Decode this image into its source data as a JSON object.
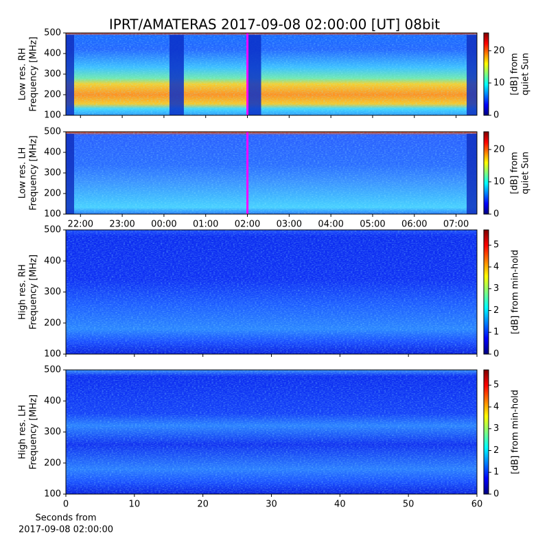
{
  "chart_data": [
    {
      "type": "spectrogram",
      "title": "IPRT/AMATERAS 2017-09-08 02:00:00 [UT]   08bit",
      "ylabel": [
        "Low res. RH",
        "Frequency [MHz]"
      ],
      "xlim": [
        21.65,
        31.5
      ],
      "xticks": [
        22,
        23,
        24,
        25,
        26,
        27,
        28,
        29,
        30,
        31
      ],
      "xticklabels": false,
      "ylim": [
        100,
        500
      ],
      "yticks": [
        100,
        200,
        300,
        400,
        500
      ],
      "colormap": "jet",
      "clim": [
        0,
        25.5
      ],
      "cticks": [
        0,
        10,
        20
      ],
      "clabel": [
        "[dB] from",
        "quiet Sun"
      ],
      "vline": {
        "value": 26,
        "color": "#ff00ff"
      }
    },
    {
      "type": "spectrogram",
      "ylabel": [
        "Low res. LH",
        "Frequency [MHz]"
      ],
      "xlim": [
        21.65,
        31.5
      ],
      "xticks": [
        {
          "value": 22,
          "label": "22:00"
        },
        {
          "value": 23,
          "label": "23:00"
        },
        {
          "value": 24,
          "label": "00:00"
        },
        {
          "value": 25,
          "label": "01:00"
        },
        {
          "value": 26,
          "label": "02:00"
        },
        {
          "value": 27,
          "label": "03:00"
        },
        {
          "value": 28,
          "label": "04:00"
        },
        {
          "value": 29,
          "label": "05:00"
        },
        {
          "value": 30,
          "label": "06:00"
        },
        {
          "value": 31,
          "label": "07:00"
        }
      ],
      "ylim": [
        100,
        500
      ],
      "yticks": [
        100,
        200,
        300,
        400,
        500
      ],
      "colormap": "jet",
      "clim": [
        0,
        25.5
      ],
      "cticks": [
        0,
        10,
        20
      ],
      "clabel": [
        "[dB] from",
        "quiet Sun"
      ],
      "vline": {
        "value": 26,
        "color": "#ff00ff"
      }
    },
    {
      "type": "spectrogram",
      "ylabel": [
        "High res. RH",
        "Frequency [MHz]"
      ],
      "xlim": [
        0,
        60
      ],
      "xticks": [
        0,
        10,
        20,
        30,
        40,
        50,
        60
      ],
      "xticklabels": false,
      "ylim": [
        100,
        500
      ],
      "yticks": [
        100,
        200,
        300,
        400,
        500
      ],
      "colormap": "jet",
      "clim": [
        0,
        5.7
      ],
      "cticks": [
        0,
        1,
        2,
        3,
        4,
        5
      ],
      "clabel": [
        "[dB] from min-hold"
      ]
    },
    {
      "type": "spectrogram",
      "ylabel": [
        "High res. LH",
        "Frequency [MHz]"
      ],
      "xlim": [
        0,
        60
      ],
      "xticks": [
        0,
        10,
        20,
        30,
        40,
        50,
        60
      ],
      "xlabel": [
        "Seconds from",
        "2017-09-08 02:00:00"
      ],
      "ylim": [
        100,
        500
      ],
      "yticks": [
        100,
        200,
        300,
        400,
        500
      ],
      "colormap": "jet",
      "clim": [
        0,
        5.7
      ],
      "cticks": [
        0,
        1,
        2,
        3,
        4,
        5
      ],
      "clabel": [
        "[dB] from min-hold"
      ]
    }
  ]
}
